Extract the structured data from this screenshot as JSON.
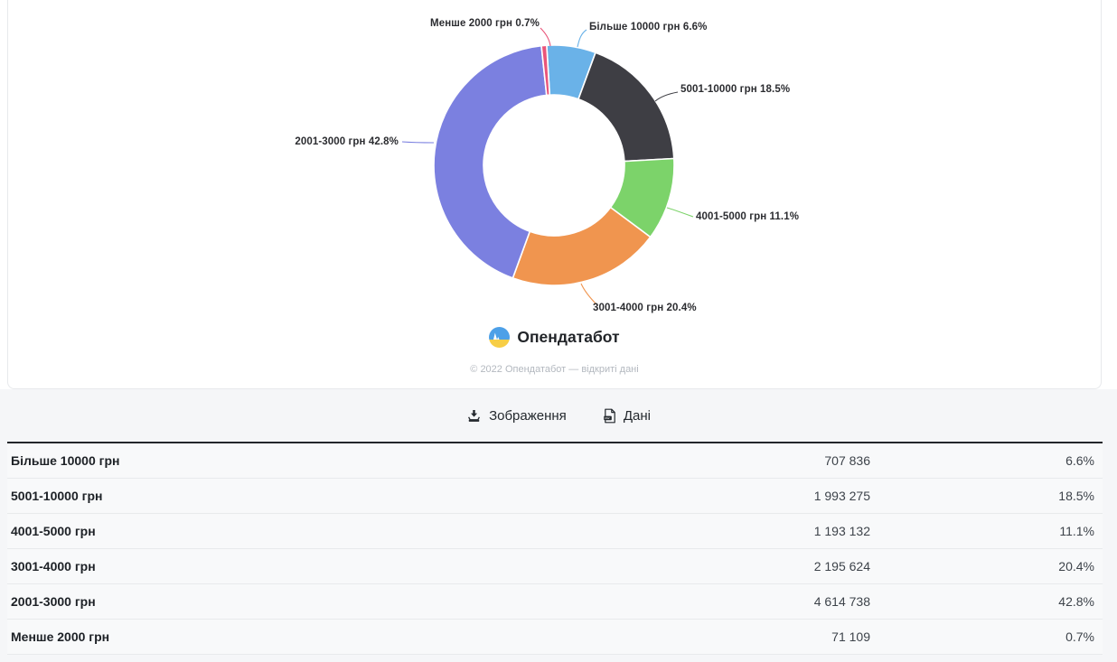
{
  "chart_data": {
    "type": "pie",
    "subtype": "donut",
    "title": "",
    "unit": "грн",
    "legend_position": "outside-labels-with-leader-lines",
    "slices": [
      {
        "category": "Більше 10000 грн",
        "label": "Більше 10000 грн 6.6%",
        "value": 707836,
        "value_display": "707 836",
        "pct": 6.6,
        "pct_display": "6.6%",
        "color": "#6ab2e8"
      },
      {
        "category": "5001-10000 грн",
        "label": "5001-10000 грн 18.5%",
        "value": 1993275,
        "value_display": "1 993 275",
        "pct": 18.5,
        "pct_display": "18.5%",
        "color": "#3e3e44"
      },
      {
        "category": "4001-5000 грн",
        "label": "4001-5000 грн 11.1%",
        "value": 1193132,
        "value_display": "1 193 132",
        "pct": 11.1,
        "pct_display": "11.1%",
        "color": "#7cd36a"
      },
      {
        "category": "3001-4000 грн",
        "label": "3001-4000 грн 20.4%",
        "value": 2195624,
        "value_display": "2 195 624",
        "pct": 20.4,
        "pct_display": "20.4%",
        "color": "#f0954f"
      },
      {
        "category": "2001-3000 грн",
        "label": "2001-3000 грн 42.8%",
        "value": 4614738,
        "value_display": "4 614 738",
        "pct": 42.8,
        "pct_display": "42.8%",
        "color": "#7b80e0"
      },
      {
        "category": "Менше 2000 грн",
        "label": "Менше 2000 грн 0.7%",
        "value": 71109,
        "value_display": "71 109",
        "pct": 0.7,
        "pct_display": "0.7%",
        "color": "#e9557a"
      }
    ]
  },
  "branding": {
    "logo_text": "Опендатабот",
    "copyright": "© 2022 Опендатабот — відкриті дані"
  },
  "actions": {
    "image_button": "Зображення",
    "data_button": "Дані"
  }
}
